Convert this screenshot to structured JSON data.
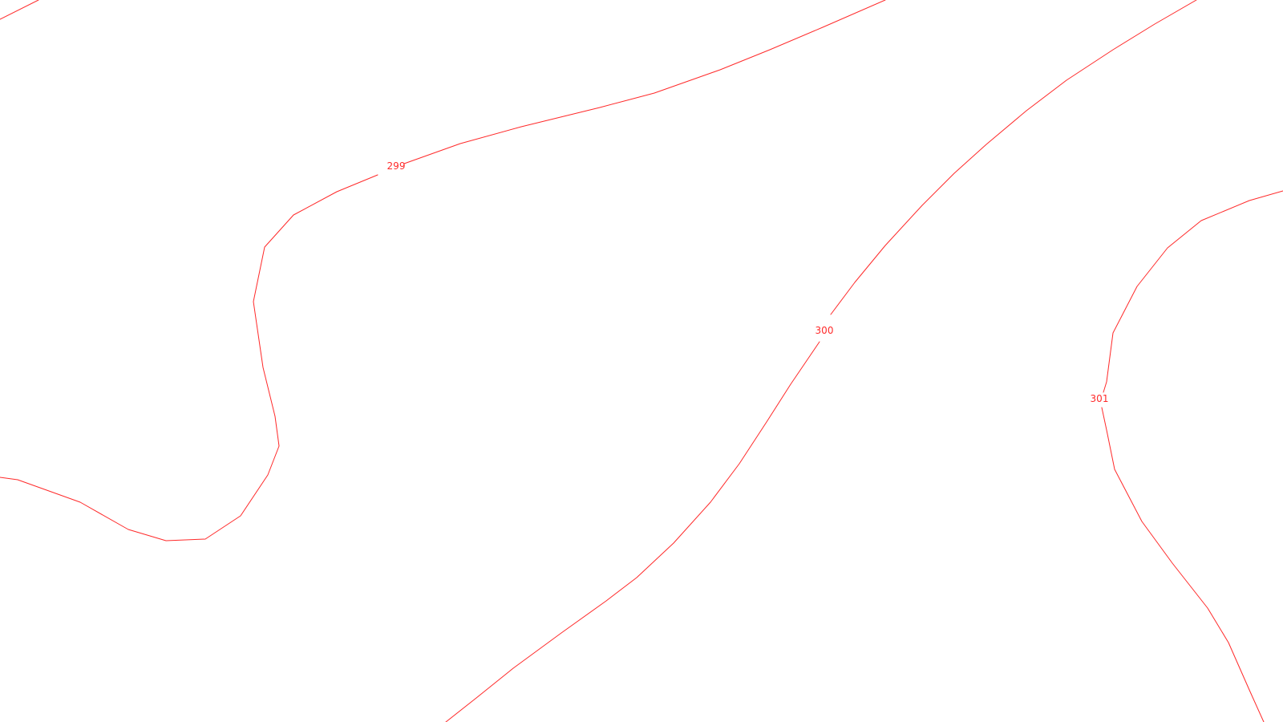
{
  "map": {
    "background_color": "#ffffff",
    "contour_color": "#ff2a2a",
    "contours": [
      {
        "label": "299"
      },
      {
        "label": "300"
      },
      {
        "label": "301"
      }
    ]
  }
}
